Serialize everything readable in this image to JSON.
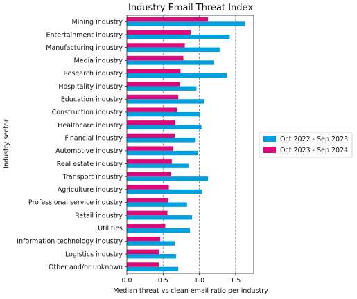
{
  "chart_data": {
    "type": "bar",
    "orientation": "horizontal",
    "title": "Industry Email Threat Index",
    "xlabel": "Median threat vs clean email ratio per industry",
    "ylabel": "Industry sector",
    "xlim": [
      0,
      1.75
    ],
    "xticks": [
      "0.0",
      "0.5",
      "1.0",
      "1.5"
    ],
    "grid": "vertical dashed at 0.5, 1.0, 1.5",
    "legend_position": "right",
    "categories": [
      "Mining industry",
      "Entertainment industry",
      "Manufacturing industry",
      "Media industry",
      "Research industry",
      "Hospitality industry",
      "Education industry",
      "Construction industry",
      "Healthcare industry",
      "Financial industry",
      "Automotive industry",
      "Real estate industry",
      "Transport industry",
      "Agriculture industry",
      "Professional service industry",
      "Retail industry",
      "Utilities",
      "Information technology industry",
      "Logistics industry",
      "Other and/or unknown"
    ],
    "series": [
      {
        "name": "Oct 2022 - Sep 2023",
        "color": "#00a0dc",
        "values": [
          1.63,
          1.42,
          1.28,
          1.2,
          1.38,
          0.96,
          1.07,
          1.01,
          1.03,
          0.95,
          0.98,
          0.85,
          1.12,
          1.04,
          0.83,
          0.9,
          0.87,
          0.66,
          0.68,
          0.71
        ]
      },
      {
        "name": "Oct 2023 - Sep 2024",
        "color": "#dc0a78",
        "values": [
          1.12,
          0.88,
          0.8,
          0.78,
          0.74,
          0.73,
          0.71,
          0.69,
          0.67,
          0.66,
          0.64,
          0.62,
          0.61,
          0.58,
          0.57,
          0.56,
          0.53,
          0.46,
          0.45,
          0.44
        ]
      }
    ]
  }
}
